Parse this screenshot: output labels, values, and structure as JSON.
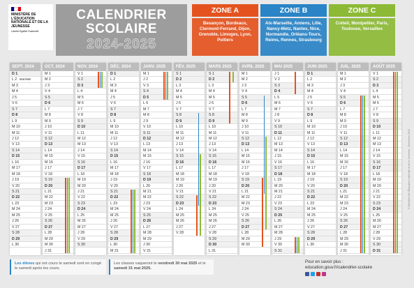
{
  "header": {
    "ministry": "MINISTÈRE DE L'ÉDUCATION NATIONALE ET DE LA JEUNESSE",
    "motto": "Liberté Égalité Fraternité",
    "title": "CALENDRIER SCOLAIRE",
    "years": "2024-2025"
  },
  "zones": [
    {
      "name": "ZONE A",
      "color": "#e4531f",
      "cities": "Besançon, Bordeaux, Clermont-Ferrand, Dijon, Grenoble, Limoges, Lyon, Poitiers"
    },
    {
      "name": "ZONE B",
      "color": "#2a84c6",
      "cities": "Aix-Marseille, Amiens, Lille, Nancy-Metz, Nantes, Nice, Normandie, Orléans-Tours, Reims, Rennes, Strasbourg"
    },
    {
      "name": "ZONE C",
      "color": "#8cba36",
      "cities": "Créteil, Montpellier, Paris, Toulouse, Versailles"
    }
  ],
  "rentree": "RENTRÉE",
  "months": [
    {
      "name": "SEPT. 2024",
      "days": [
        "D 1",
        "L 2",
        "M 3",
        "M 4",
        "J 5",
        "V 6",
        "S 7",
        "D 8",
        "L 9",
        "M 10",
        "M 11",
        "J 12",
        "V 13",
        "S 14",
        "D 15",
        "L 16",
        "M 17",
        "M 18",
        "J 19",
        "V 20",
        "S 21",
        "D 22",
        "L 23",
        "M 24",
        "M 25",
        "J 26",
        "V 27",
        "S 28",
        "D 29",
        "L 30"
      ],
      "holidays": []
    },
    {
      "name": "OCT. 2024",
      "days": [
        "M 1",
        "M 2",
        "J 3",
        "V 4",
        "S 5",
        "D 6",
        "L 7",
        "M 8",
        "M 9",
        "J 10",
        "V 11",
        "S 12",
        "D 13",
        "L 14",
        "M 15",
        "M 16",
        "J 17",
        "V 18",
        "S 19",
        "D 20",
        "L 21",
        "M 22",
        "M 23",
        "J 24",
        "V 25",
        "S 26",
        "D 27",
        "L 28",
        "M 29",
        "M 30",
        "J 31"
      ],
      "holidays": [
        {
          "zone": "ZONE A",
          "from": 19,
          "to": 31
        },
        {
          "zone": "ZONE B",
          "from": 19,
          "to": 31
        },
        {
          "zone": "ZONE C",
          "from": 19,
          "to": 31
        }
      ]
    },
    {
      "name": "NOV. 2024",
      "days": [
        "V 1",
        "S 2",
        "D 3",
        "L 4",
        "M 5",
        "M 6",
        "J 7",
        "V 8",
        "S 9",
        "D 10",
        "L 11",
        "M 12",
        "M 13",
        "J 14",
        "V 15",
        "S 16",
        "D 17",
        "L 18",
        "M 19",
        "M 20",
        "J 21",
        "V 22",
        "S 23",
        "D 24",
        "L 25",
        "M 26",
        "M 27",
        "J 28",
        "V 29",
        "S 30"
      ],
      "holidays": [
        {
          "zone": "ZONE A",
          "from": 1,
          "to": 3
        },
        {
          "zone": "ZONE B",
          "from": 1,
          "to": 3
        },
        {
          "zone": "ZONE C",
          "from": 1,
          "to": 3
        }
      ]
    },
    {
      "name": "DÉC. 2024",
      "days": [
        "D 1",
        "L 2",
        "M 3",
        "M 4",
        "J 5",
        "V 6",
        "S 7",
        "D 8",
        "L 9",
        "M 10",
        "M 11",
        "J 12",
        "V 13",
        "S 14",
        "D 15",
        "L 16",
        "M 17",
        "M 18",
        "J 19",
        "V 20",
        "S 21",
        "D 22",
        "L 23",
        "M 24",
        "M 25",
        "J 26",
        "V 27",
        "S 28",
        "D 29",
        "L 30",
        "M 31"
      ],
      "holidays": [
        {
          "zone": "ZONE A",
          "from": 21,
          "to": 31
        },
        {
          "zone": "ZONE B",
          "from": 21,
          "to": 31
        },
        {
          "zone": "ZONE C",
          "from": 21,
          "to": 31
        }
      ]
    },
    {
      "name": "JANV. 2025",
      "days": [
        "M 1",
        "J 2",
        "V 3",
        "S 4",
        "D 5",
        "L 6",
        "M 7",
        "M 8",
        "J 9",
        "V 10",
        "S 11",
        "D 12",
        "L 13",
        "M 14",
        "M 15",
        "J 16",
        "V 17",
        "S 18",
        "D 19",
        "L 20",
        "M 21",
        "M 22",
        "J 23",
        "V 24",
        "S 25",
        "D 26",
        "L 27",
        "M 28",
        "M 29",
        "J 30",
        "V 31"
      ],
      "holidays": [
        {
          "zone": "ZONE A",
          "from": 1,
          "to": 5
        },
        {
          "zone": "ZONE B",
          "from": 1,
          "to": 5
        },
        {
          "zone": "ZONE C",
          "from": 1,
          "to": 5
        }
      ]
    },
    {
      "name": "FÉV. 2025",
      "days": [
        "S 1",
        "D 2",
        "L 3",
        "M 4",
        "M 5",
        "J 6",
        "V 7",
        "S 8",
        "D 9",
        "L 10",
        "M 11",
        "M 12",
        "J 13",
        "V 14",
        "S 15",
        "D 16",
        "L 17",
        "M 18",
        "M 19",
        "J 20",
        "V 21",
        "S 22",
        "D 23",
        "L 24",
        "M 25",
        "M 26",
        "J 27",
        "V 28"
      ],
      "holidays": [
        {
          "zone": "ZONE A",
          "from": 22,
          "to": 28
        },
        {
          "zone": "ZONE B",
          "from": 8,
          "to": 23
        },
        {
          "zone": "ZONE C",
          "from": 15,
          "to": 28
        }
      ]
    },
    {
      "name": "MARS 2025",
      "days": [
        "S 1",
        "D 2",
        "L 3",
        "M 4",
        "M 5",
        "J 6",
        "V 7",
        "S 8",
        "D 9",
        "L 10",
        "M 11",
        "M 12",
        "J 13",
        "V 14",
        "S 15",
        "D 16",
        "L 17",
        "M 18",
        "M 19",
        "J 20",
        "V 21",
        "S 22",
        "D 23",
        "L 24",
        "M 25",
        "M 26",
        "J 27",
        "V 28",
        "S 29",
        "D 30",
        "L 31"
      ],
      "holidays": [
        {
          "zone": "ZONE A",
          "from": 1,
          "to": 9
        },
        {
          "zone": "ZONE C",
          "from": 1,
          "to": 2
        }
      ]
    },
    {
      "name": "AVRIL 2025",
      "days": [
        "M 1",
        "M 2",
        "J 3",
        "V 4",
        "S 5",
        "D 6",
        "L 7",
        "M 8",
        "M 9",
        "J 10",
        "V 11",
        "S 12",
        "D 13",
        "L 14",
        "M 15",
        "M 16",
        "J 17",
        "V 18",
        "S 19",
        "D 20",
        "L 21",
        "M 22",
        "M 23",
        "J 24",
        "V 25",
        "S 26",
        "D 27",
        "L 28",
        "M 29",
        "M 30"
      ],
      "holidays": [
        {
          "zone": "ZONE A",
          "from": 19,
          "to": 30
        },
        {
          "zone": "ZONE B",
          "from": 5,
          "to": 21
        },
        {
          "zone": "ZONE C",
          "from": 12,
          "to": 27
        }
      ]
    },
    {
      "name": "MAI 2025",
      "days": [
        "J 1",
        "V 2",
        "S 3",
        "D 4",
        "L 5",
        "M 6",
        "M 7",
        "J 8",
        "V 9",
        "S 10",
        "D 11",
        "L 12",
        "M 13",
        "M 14",
        "J 15",
        "V 16",
        "S 17",
        "D 18",
        "L 19",
        "M 20",
        "M 21",
        "J 22",
        "V 23",
        "S 24",
        "D 25",
        "L 26",
        "M 27",
        "M 28",
        "J 29",
        "V 30",
        "S 31"
      ],
      "holidays": [
        {
          "zone": "ZONE A",
          "from": 1,
          "to": 4
        },
        {
          "zone": "ZONE A",
          "from": 29,
          "to": 31
        },
        {
          "zone": "ZONE B",
          "from": 29,
          "to": 31
        },
        {
          "zone": "ZONE C",
          "from": 29,
          "to": 31
        }
      ]
    },
    {
      "name": "JUIN 2025",
      "days": [
        "D 1",
        "L 2",
        "M 3",
        "M 4",
        "J 5",
        "V 6",
        "S 7",
        "D 8",
        "L 9",
        "M 10",
        "M 11",
        "J 12",
        "V 13",
        "S 14",
        "D 15",
        "L 16",
        "M 17",
        "M 18",
        "J 19",
        "V 20",
        "S 21",
        "D 22",
        "L 23",
        "M 24",
        "M 25",
        "J 26",
        "V 27",
        "S 28",
        "D 29",
        "L 30"
      ],
      "holidays": []
    },
    {
      "name": "JUIL. 2025",
      "days": [
        "M 1",
        "M 2",
        "J 3",
        "V 4",
        "S 5",
        "D 6",
        "L 7",
        "M 8",
        "M 9",
        "J 10",
        "V 11",
        "S 12",
        "D 13",
        "L 14",
        "M 15",
        "M 16",
        "J 17",
        "V 18",
        "S 19",
        "D 20",
        "L 21",
        "M 22",
        "M 23",
        "J 24",
        "V 25",
        "S 26",
        "D 27",
        "L 28",
        "M 29",
        "M 30",
        "J 31"
      ],
      "holidays": [
        {
          "zone": "ZONE A",
          "from": 5,
          "to": 31
        },
        {
          "zone": "ZONE B",
          "from": 5,
          "to": 31
        },
        {
          "zone": "ZONE C",
          "from": 5,
          "to": 31
        }
      ]
    },
    {
      "name": "AOÛT 2025",
      "days": [
        "V 1",
        "S 2",
        "D 3",
        "L 4",
        "M 5",
        "M 6",
        "J 7",
        "V 8",
        "S 9",
        "D 10",
        "L 11",
        "M 12",
        "M 13",
        "J 14",
        "V 15",
        "S 16",
        "D 17",
        "L 18",
        "M 19",
        "M 20",
        "J 21",
        "V 22",
        "S 23",
        "D 24",
        "L 25",
        "M 26",
        "M 27",
        "J 28",
        "V 29",
        "S 30",
        "D 31"
      ],
      "holidays": [
        {
          "zone": "ZONE A",
          "from": 1,
          "to": 31
        },
        {
          "zone": "ZONE B",
          "from": 1,
          "to": 31
        },
        {
          "zone": "ZONE C",
          "from": 1,
          "to": 31
        }
      ]
    }
  ],
  "footer": {
    "note1": [
      "Les élèves",
      "qui ont cours le samedi sont en congé le samedi après les cours."
    ],
    "note2": [
      "Les classes vaqueront le",
      "vendredi 30 mai 2025",
      "et le",
      "samedi 31 mai 2025."
    ],
    "more": "Pour en savoir plus :",
    "url": "education.gouv.fr/calendrier-scolaire",
    "copyright": "© Ministère de l'Éducation nationale et de la Jeunesse - Décembre 2022"
  }
}
